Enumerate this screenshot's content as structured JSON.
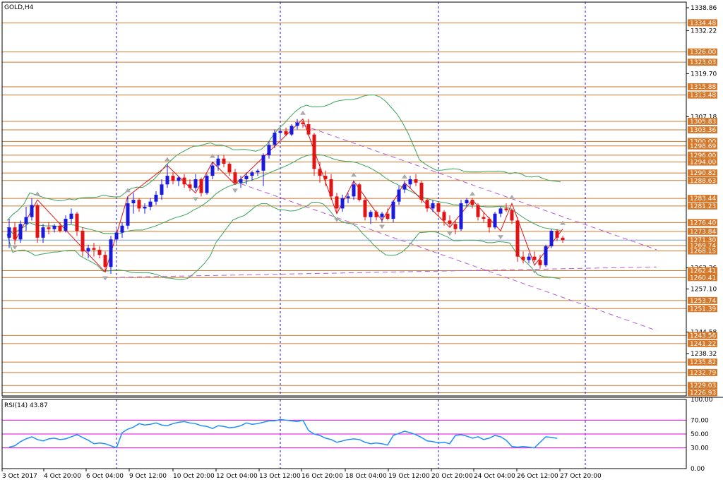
{
  "symbol": "GOLD,H4",
  "rsi_label": "RSI(14) 43.87",
  "price_labels": [
    "1338.86",
    "1334.48",
    "1332.22",
    "1326.00",
    "1323.03",
    "1319.70",
    "1315.88",
    "1313.48",
    "1307.18",
    "1305.83",
    "1303.36",
    "1300.00",
    "1298.69",
    "1296.00",
    "1294.00",
    "1290.82",
    "1288.63",
    "1283.44",
    "1281.23",
    "1276.40",
    "1273.84",
    "1271.30",
    "1269.74",
    "1268.15",
    "1263.26",
    "1262.41",
    "1260.41",
    "1257.10",
    "1253.74",
    "1251.39",
    "1244.58",
    "1243.56",
    "1241.22",
    "1238.32",
    "1235.82",
    "1232.79",
    "1229.03",
    "1226.93"
  ],
  "rsi_ticks": [
    "100.00",
    "70.00",
    "50.00",
    "30.00",
    "0.00"
  ],
  "time_labels": [
    "3 Oct 2017",
    "4 Oct 20:00",
    "6 Oct 04:00",
    "9 Oct 12:00",
    "10 Oct 20:00",
    "12 Oct 04:00",
    "13 Oct 12:00",
    "16 Oct 20:00",
    "18 Oct 04:00",
    "19 Oct 12:00",
    "20 Oct 20:00",
    "24 Oct 04:00",
    "26 Oct 12:00",
    "27 Oct 20:00"
  ],
  "colors": {
    "bull": "#1a1adc",
    "bear": "#e01414",
    "level": "#d07a2e",
    "trend": "#b35cd6",
    "band": "#3aa35a",
    "rsi": "#1e90ff",
    "rsi_level": "#e000e0"
  },
  "chart_data": {
    "type": "candlestick",
    "symbol": "GOLD",
    "timeframe": "H4",
    "y_range": [
      1226.0,
      1340.5
    ],
    "horizontal_levels": [
      1334.48,
      1326.0,
      1323.03,
      1315.88,
      1313.48,
      1305.83,
      1303.36,
      1300.0,
      1298.69,
      1296.0,
      1294.0,
      1290.82,
      1288.63,
      1283.44,
      1281.23,
      1276.4,
      1273.84,
      1269.74,
      1268.15,
      1262.41,
      1260.41,
      1253.74,
      1251.39,
      1243.56,
      1241.22,
      1235.82,
      1232.79,
      1229.03,
      1226.93
    ],
    "current_price": 1271.3,
    "candles": [
      [
        1272.0,
        1277.5,
        1269.0,
        1275.0
      ],
      [
        1275.0,
        1276.5,
        1270.0,
        1271.5
      ],
      [
        1271.5,
        1277.0,
        1270.5,
        1276.0
      ],
      [
        1276.0,
        1281.0,
        1274.0,
        1278.0
      ],
      [
        1278.0,
        1283.5,
        1277.0,
        1281.5
      ],
      [
        1281.5,
        1282.0,
        1270.5,
        1272.0
      ],
      [
        1272.0,
        1276.0,
        1270.5,
        1275.0
      ],
      [
        1275.0,
        1276.5,
        1273.0,
        1274.5
      ],
      [
        1274.5,
        1276.0,
        1273.5,
        1275.5
      ],
      [
        1275.5,
        1276.5,
        1273.5,
        1274.0
      ],
      [
        1274.0,
        1278.5,
        1273.5,
        1277.5
      ],
      [
        1277.5,
        1280.5,
        1276.0,
        1279.0
      ],
      [
        1279.0,
        1279.5,
        1272.5,
        1274.0
      ],
      [
        1274.0,
        1275.0,
        1266.5,
        1268.0
      ],
      [
        1268.0,
        1270.0,
        1266.0,
        1269.0
      ],
      [
        1269.0,
        1270.5,
        1266.5,
        1268.5
      ],
      [
        1268.5,
        1269.5,
        1266.0,
        1267.0
      ],
      [
        1267.0,
        1268.0,
        1262.0,
        1263.5
      ],
      [
        1263.5,
        1272.5,
        1261.5,
        1271.5
      ],
      [
        1271.5,
        1274.5,
        1270.5,
        1273.5
      ],
      [
        1273.5,
        1276.5,
        1272.0,
        1275.5
      ],
      [
        1275.5,
        1284.0,
        1274.5,
        1282.0
      ],
      [
        1282.0,
        1285.0,
        1279.0,
        1283.0
      ],
      [
        1283.0,
        1283.5,
        1279.5,
        1280.5
      ],
      [
        1280.5,
        1282.0,
        1279.0,
        1281.0
      ],
      [
        1281.0,
        1283.5,
        1280.0,
        1282.5
      ],
      [
        1282.5,
        1285.5,
        1281.5,
        1284.5
      ],
      [
        1284.5,
        1289.0,
        1283.0,
        1287.5
      ],
      [
        1287.5,
        1293.5,
        1286.5,
        1290.0
      ],
      [
        1290.0,
        1291.0,
        1287.5,
        1288.5
      ],
      [
        1288.5,
        1290.0,
        1287.0,
        1289.5
      ],
      [
        1289.5,
        1290.5,
        1286.5,
        1287.5
      ],
      [
        1287.5,
        1289.0,
        1285.5,
        1286.5
      ],
      [
        1286.5,
        1290.5,
        1285.5,
        1289.0
      ],
      [
        1289.0,
        1289.5,
        1284.0,
        1285.0
      ],
      [
        1285.0,
        1290.5,
        1284.5,
        1290.0
      ],
      [
        1290.0,
        1294.0,
        1289.0,
        1293.0
      ],
      [
        1293.0,
        1296.0,
        1291.5,
        1295.0
      ],
      [
        1295.0,
        1296.0,
        1292.5,
        1293.5
      ],
      [
        1293.5,
        1294.0,
        1290.0,
        1291.0
      ],
      [
        1291.0,
        1292.0,
        1287.5,
        1288.0
      ],
      [
        1288.0,
        1290.0,
        1286.5,
        1289.0
      ],
      [
        1289.0,
        1291.0,
        1287.5,
        1290.0
      ],
      [
        1290.0,
        1291.5,
        1288.5,
        1291.0
      ],
      [
        1291.0,
        1292.0,
        1290.0,
        1291.5
      ],
      [
        1291.5,
        1296.5,
        1287.0,
        1296.0
      ],
      [
        1296.0,
        1300.0,
        1295.0,
        1299.0
      ],
      [
        1299.0,
        1303.5,
        1298.0,
        1302.5
      ],
      [
        1302.5,
        1304.0,
        1301.0,
        1303.0
      ],
      [
        1303.0,
        1304.0,
        1301.5,
        1302.0
      ],
      [
        1302.0,
        1305.0,
        1301.5,
        1304.5
      ],
      [
        1304.5,
        1306.5,
        1303.5,
        1305.5
      ],
      [
        1305.5,
        1306.0,
        1304.0,
        1305.0
      ],
      [
        1305.0,
        1306.5,
        1301.5,
        1302.0
      ],
      [
        1302.0,
        1302.5,
        1290.0,
        1292.0
      ],
      [
        1292.0,
        1294.0,
        1288.0,
        1290.0
      ],
      [
        1290.0,
        1291.5,
        1287.0,
        1289.0
      ],
      [
        1289.0,
        1290.5,
        1283.0,
        1284.0
      ],
      [
        1284.0,
        1285.0,
        1279.0,
        1280.5
      ],
      [
        1280.5,
        1284.5,
        1279.5,
        1283.5
      ],
      [
        1283.5,
        1285.0,
        1282.0,
        1284.0
      ],
      [
        1284.0,
        1288.5,
        1283.0,
        1287.5
      ],
      [
        1287.5,
        1288.0,
        1282.5,
        1283.0
      ],
      [
        1283.0,
        1283.5,
        1277.0,
        1278.0
      ],
      [
        1278.0,
        1280.0,
        1276.0,
        1279.5
      ],
      [
        1279.5,
        1280.0,
        1277.0,
        1278.0
      ],
      [
        1278.0,
        1279.5,
        1276.5,
        1279.0
      ],
      [
        1279.0,
        1280.5,
        1277.0,
        1277.5
      ],
      [
        1277.5,
        1283.0,
        1276.5,
        1282.5
      ],
      [
        1282.5,
        1287.0,
        1281.5,
        1286.0
      ],
      [
        1286.0,
        1288.5,
        1285.0,
        1287.5
      ],
      [
        1287.5,
        1290.0,
        1286.5,
        1289.0
      ],
      [
        1289.0,
        1290.5,
        1287.0,
        1288.0
      ],
      [
        1288.0,
        1288.5,
        1282.0,
        1283.0
      ],
      [
        1283.0,
        1283.5,
        1279.5,
        1280.5
      ],
      [
        1280.5,
        1283.0,
        1279.5,
        1282.0
      ],
      [
        1282.0,
        1282.5,
        1278.0,
        1279.5
      ],
      [
        1279.5,
        1280.0,
        1275.5,
        1277.0
      ],
      [
        1277.0,
        1278.5,
        1275.0,
        1276.0
      ],
      [
        1276.0,
        1277.0,
        1273.0,
        1274.5
      ],
      [
        1274.5,
        1283.0,
        1274.0,
        1282.0
      ],
      [
        1282.0,
        1283.5,
        1281.0,
        1283.0
      ],
      [
        1283.0,
        1283.5,
        1280.5,
        1281.5
      ],
      [
        1281.5,
        1282.0,
        1277.0,
        1278.0
      ],
      [
        1278.0,
        1279.5,
        1276.5,
        1277.5
      ],
      [
        1277.5,
        1278.0,
        1273.5,
        1275.0
      ],
      [
        1275.0,
        1279.5,
        1274.5,
        1279.0
      ],
      [
        1279.0,
        1281.0,
        1278.0,
        1280.5
      ],
      [
        1280.5,
        1282.0,
        1279.5,
        1280.0
      ],
      [
        1280.0,
        1280.5,
        1276.0,
        1277.0
      ],
      [
        1277.0,
        1278.0,
        1265.0,
        1266.5
      ],
      [
        1266.5,
        1268.0,
        1264.5,
        1265.5
      ],
      [
        1265.5,
        1267.5,
        1264.5,
        1266.5
      ],
      [
        1266.5,
        1268.0,
        1265.0,
        1265.5
      ],
      [
        1265.5,
        1267.0,
        1263.0,
        1264.0
      ],
      [
        1264.0,
        1270.0,
        1263.5,
        1269.5
      ],
      [
        1269.5,
        1274.5,
        1269.0,
        1274.0
      ],
      [
        1274.0,
        1274.5,
        1271.0,
        1272.0
      ],
      [
        1272.0,
        1272.5,
        1270.5,
        1271.3
      ]
    ],
    "rsi": {
      "period": 14,
      "last": 43.87,
      "levels": [
        70,
        50,
        30
      ],
      "ylim": [
        0,
        100
      ],
      "values": [
        31,
        33,
        39,
        43,
        46,
        42,
        40,
        43,
        44,
        42,
        43,
        46,
        49,
        45,
        41,
        36,
        37,
        36,
        33,
        30,
        52,
        57,
        60,
        65,
        63,
        64,
        66,
        63,
        62,
        65,
        67,
        68,
        66,
        65,
        62,
        61,
        58,
        62,
        61,
        59,
        60,
        62,
        66,
        64,
        65,
        67,
        69,
        69,
        71,
        70,
        69,
        68,
        70,
        55,
        50,
        48,
        44,
        42,
        38,
        40,
        42,
        43,
        42,
        38,
        36,
        37,
        36,
        34,
        48,
        51,
        54,
        52,
        49,
        45,
        40,
        39,
        37,
        38,
        36,
        48,
        49,
        47,
        44,
        46,
        42,
        44,
        48,
        46,
        41,
        32,
        31,
        32,
        31,
        30,
        38,
        46,
        45,
        43.87
      ]
    }
  }
}
